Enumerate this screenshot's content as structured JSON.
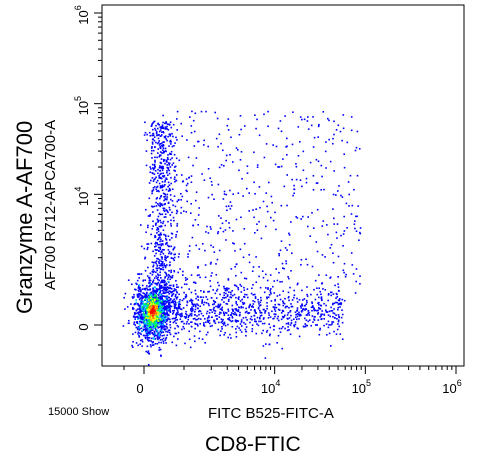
{
  "chart_data": {
    "type": "scatter",
    "subtype": "flow-cytometry dot plot (density colored)",
    "title": "",
    "outer_xlabel": "CD8-FTIC",
    "xlabel": "FITC B525-FITC-A",
    "outer_ylabel": "Granzyme A-AF700",
    "ylabel": "AF700 R712-APCA700-A",
    "event_count_text": "15000 Show",
    "x_scale": "biexponential",
    "y_scale": "biexponential",
    "xlim": [
      -2000,
      1000000
    ],
    "ylim": [
      -2000,
      1000000
    ],
    "x_ticks": [
      {
        "value": 0,
        "base": "0",
        "exp": ""
      },
      {
        "value": 10000,
        "base": "10",
        "exp": "4"
      },
      {
        "value": 100000,
        "base": "10",
        "exp": "5"
      },
      {
        "value": 1000000,
        "base": "10",
        "exp": "6"
      }
    ],
    "y_ticks": [
      {
        "value": 0,
        "base": "0",
        "exp": ""
      },
      {
        "value": 10000,
        "base": "10",
        "exp": "4"
      },
      {
        "value": 100000,
        "base": "10",
        "exp": "5"
      },
      {
        "value": 1000000,
        "base": "10",
        "exp": "6"
      }
    ],
    "populations": [
      {
        "name": "main-cluster",
        "x_center": 0,
        "y_center": 0,
        "density": "high"
      },
      {
        "name": "granzyme-high-vertical-smear",
        "x_center": 0,
        "y_range": [
          2000,
          80000
        ],
        "density": "medium"
      },
      {
        "name": "cd8-positive-horizontal-smear",
        "x_range": [
          2000,
          200000
        ],
        "y_center": 0,
        "density": "medium"
      },
      {
        "name": "double-positive-scatter",
        "x_range": [
          2000,
          300000
        ],
        "y_range": [
          3000,
          100000
        ],
        "density": "low"
      }
    ],
    "density_colors": [
      "#0000ff",
      "#00c8ff",
      "#00ff40",
      "#ffff00",
      "#ff8000",
      "#ff0000"
    ],
    "grid": false,
    "legend": "none"
  }
}
